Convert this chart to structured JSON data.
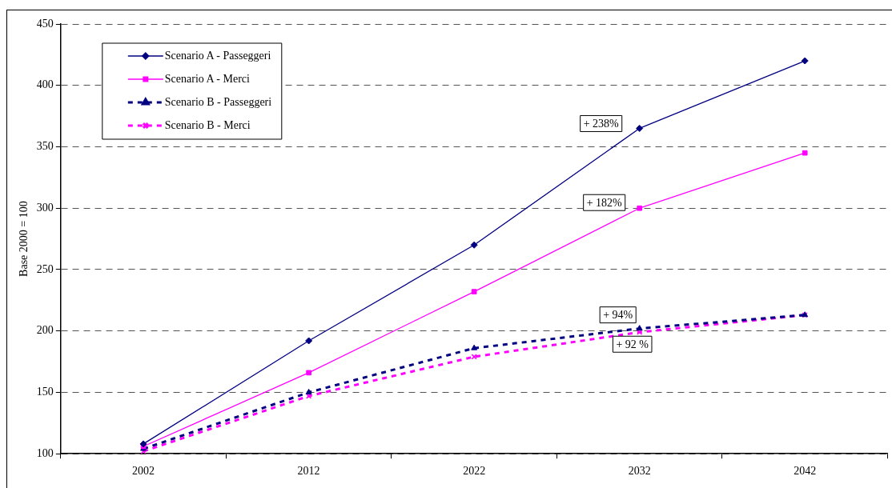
{
  "chart_data": {
    "type": "line",
    "ylabel": "Base 2000 = 100",
    "categories": [
      "2002",
      "2012",
      "2022",
      "2032",
      "2042"
    ],
    "series": [
      {
        "name": "Scenario A - Passeggeri",
        "color": "#000080",
        "marker": "diamond",
        "line_style": "solid",
        "values": [
          108,
          192,
          270,
          365,
          420
        ]
      },
      {
        "name": "Scenario A - Merci",
        "color": "#ff00ff",
        "marker": "square",
        "line_style": "solid",
        "values": [
          106,
          166,
          232,
          300,
          345
        ]
      },
      {
        "name": "Scenario B - Passeggeri",
        "color": "#000080",
        "marker": "triangle",
        "line_style": "dashed",
        "values": [
          104,
          150,
          186,
          202,
          213
        ]
      },
      {
        "name": "Scenario B - Merci",
        "color": "#ff00ff",
        "marker": "cross",
        "line_style": "dashed",
        "values": [
          102,
          147,
          179,
          199,
          213
        ]
      }
    ],
    "ylim": [
      100,
      450
    ],
    "yticks": [
      100,
      150,
      200,
      250,
      300,
      350,
      400,
      450
    ],
    "grid": "y",
    "legend": "top left",
    "annotations": [
      {
        "text": "+ 238%",
        "x": "2032",
        "y": 365
      },
      {
        "text": "+ 182%",
        "x": "2032",
        "y": 300
      },
      {
        "text": "+ 94%",
        "x": "2032",
        "y": 202
      },
      {
        "text": "+ 92 %",
        "x": "2032",
        "y": 199
      }
    ]
  }
}
